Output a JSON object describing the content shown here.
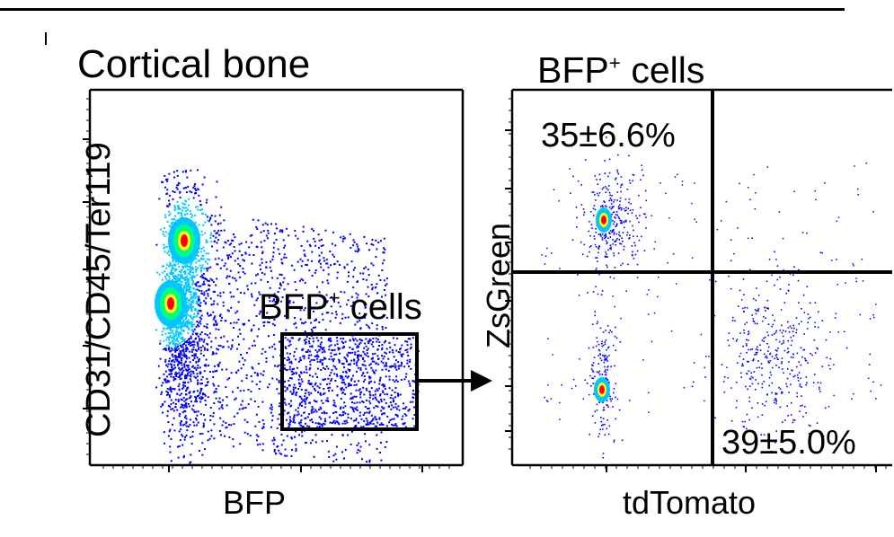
{
  "chart_data": [
    {
      "type": "scatter",
      "title": "Cortical bone",
      "xlabel": "BFP",
      "ylabel": "CD31/CD45/Ter119",
      "xscale": "log",
      "yscale": "log",
      "gate": {
        "label_main": "BFP",
        "label_sup": "+",
        "label_rest": " cells"
      },
      "populations": [
        {
          "name": "",
          "center": [
            0.7,
            3.4
          ],
          "colormap": "density"
        },
        {
          "name": "",
          "center": [
            0.55,
            2.75
          ],
          "colormap": "density"
        }
      ]
    },
    {
      "type": "scatter",
      "title_main": "BFP",
      "title_sup": "+",
      "title_rest": " cells",
      "xlabel": "tdTomato",
      "ylabel": "ZsGreen",
      "xscale": "log",
      "yscale": "log",
      "quadrants": [
        {
          "position": "top-left",
          "label": "35±6.6%"
        },
        {
          "position": "bottom-right",
          "label": "39±5.0%"
        }
      ]
    }
  ],
  "colors": {
    "low": "#0000ff",
    "mid": "#00c8ff",
    "mid2": "#00ff80",
    "high": "#ffff00",
    "peak": "#ff0000",
    "line": "#000000"
  }
}
